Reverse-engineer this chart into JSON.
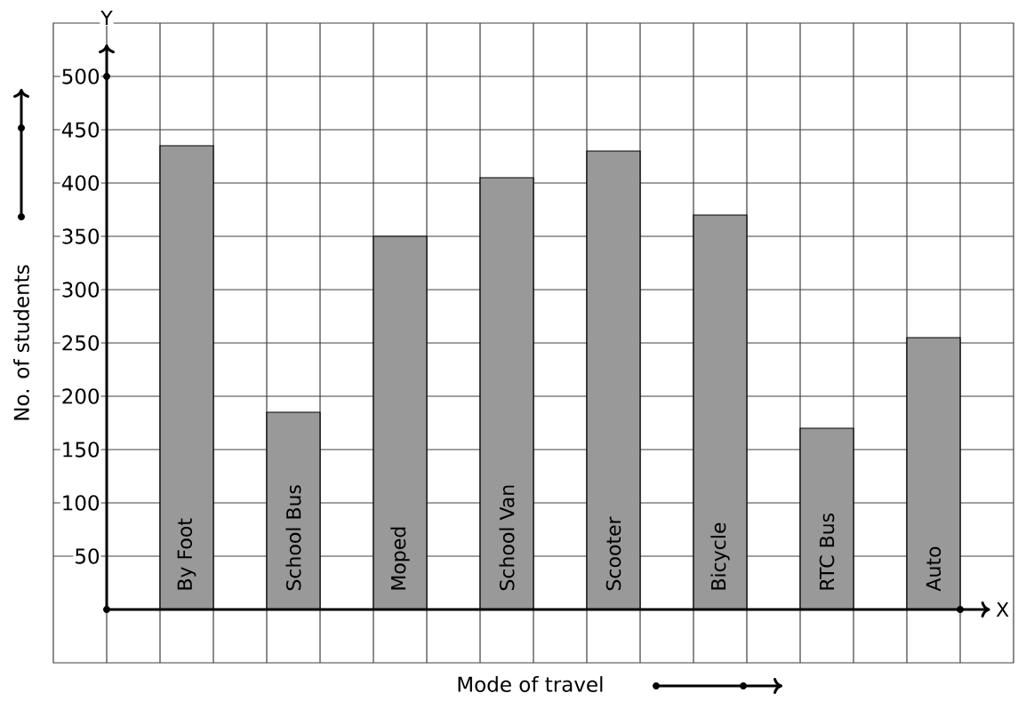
{
  "chart_data": {
    "type": "bar",
    "xlabel": "Mode of travel",
    "ylabel": "No. of students",
    "categories": [
      "By Foot",
      "School Bus",
      "Moped",
      "School Van",
      "Scooter",
      "Bicycle",
      "RTC Bus",
      "Auto"
    ],
    "values": [
      435,
      185,
      350,
      405,
      430,
      370,
      170,
      255
    ],
    "color": "#999999",
    "ylim": [
      -50,
      550
    ],
    "yticks": [
      50,
      100,
      150,
      200,
      250,
      300,
      350,
      400,
      450,
      500
    ],
    "grid": true,
    "annotations": [
      "Y",
      "X"
    ]
  }
}
